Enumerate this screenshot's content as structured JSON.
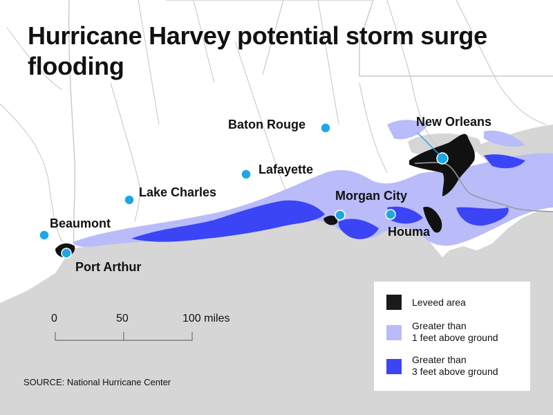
{
  "title": "Hurricane Harvey potential storm surge flooding",
  "cities": [
    {
      "name": "Baton Rouge"
    },
    {
      "name": "New Orleans"
    },
    {
      "name": "Lafayette"
    },
    {
      "name": "Lake Charles"
    },
    {
      "name": "Morgan City"
    },
    {
      "name": "Beaumont"
    },
    {
      "name": "Houma"
    },
    {
      "name": "Port Arthur"
    }
  ],
  "scale_bar": {
    "labels": [
      "0",
      "50",
      "100 miles"
    ]
  },
  "legend": {
    "items": [
      {
        "label": "Leveed area",
        "color": "#1a1a1a"
      },
      {
        "label_line1": "Greater than",
        "label_line2": "1 feet above ground",
        "color": "#b9bcf9"
      },
      {
        "label_line1": "Greater than",
        "label_line2": "3 feet above ground",
        "color": "#3b45f5"
      }
    ]
  },
  "source": "SOURCE: National Hurricane Center",
  "colors": {
    "land": "#ffffff",
    "water": "#d6d6d6",
    "city_marker": "#1ea7e3",
    "boundaries": "#c8c8c8",
    "rivers": "#c4c4c4"
  }
}
